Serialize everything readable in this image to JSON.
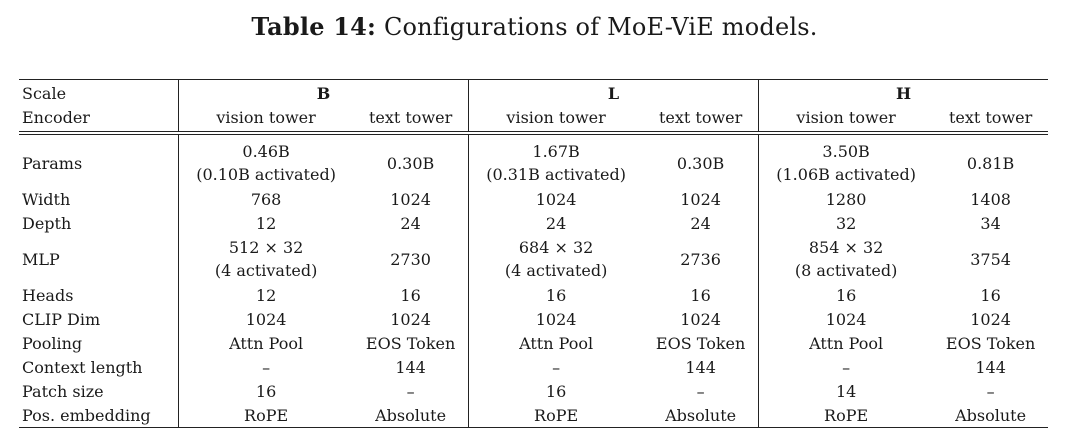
{
  "caption": {
    "label": "Table 14:",
    "text": "Configurations of MoE-ViE models."
  },
  "header": {
    "scale_label": "Scale",
    "encoder_label": "Encoder",
    "scales": [
      "B",
      "L",
      "H"
    ],
    "towers": [
      "vision tower",
      "text tower"
    ]
  },
  "rows": [
    {
      "label": "Params",
      "cells": [
        [
          "0.46B",
          "(0.10B activated)"
        ],
        [
          "0.30B"
        ],
        [
          "1.67B",
          "(0.31B activated)"
        ],
        [
          "0.30B"
        ],
        [
          "3.50B",
          "(1.06B activated)"
        ],
        [
          "0.81B"
        ]
      ]
    },
    {
      "label": "Width",
      "cells": [
        [
          "768"
        ],
        [
          "1024"
        ],
        [
          "1024"
        ],
        [
          "1024"
        ],
        [
          "1280"
        ],
        [
          "1408"
        ]
      ]
    },
    {
      "label": "Depth",
      "cells": [
        [
          "12"
        ],
        [
          "24"
        ],
        [
          "24"
        ],
        [
          "24"
        ],
        [
          "32"
        ],
        [
          "34"
        ]
      ]
    },
    {
      "label": "MLP",
      "cells": [
        [
          "512 × 32",
          "(4 activated)"
        ],
        [
          "2730"
        ],
        [
          "684 × 32",
          "(4 activated)"
        ],
        [
          "2736"
        ],
        [
          "854 × 32",
          "(8 activated)"
        ],
        [
          "3754"
        ]
      ]
    },
    {
      "label": "Heads",
      "cells": [
        [
          "12"
        ],
        [
          "16"
        ],
        [
          "16"
        ],
        [
          "16"
        ],
        [
          "16"
        ],
        [
          "16"
        ]
      ]
    },
    {
      "label": "CLIP Dim",
      "cells": [
        [
          "1024"
        ],
        [
          "1024"
        ],
        [
          "1024"
        ],
        [
          "1024"
        ],
        [
          "1024"
        ],
        [
          "1024"
        ]
      ]
    },
    {
      "label": "Pooling",
      "cells": [
        [
          "Attn Pool"
        ],
        [
          "EOS Token"
        ],
        [
          "Attn Pool"
        ],
        [
          "EOS Token"
        ],
        [
          "Attn Pool"
        ],
        [
          "EOS Token"
        ]
      ]
    },
    {
      "label": "Context length",
      "cells": [
        [
          "–"
        ],
        [
          "144"
        ],
        [
          "–"
        ],
        [
          "144"
        ],
        [
          "–"
        ],
        [
          "144"
        ]
      ]
    },
    {
      "label": "Patch size",
      "cells": [
        [
          "16"
        ],
        [
          "–"
        ],
        [
          "16"
        ],
        [
          "–"
        ],
        [
          "14"
        ],
        [
          "–"
        ]
      ]
    },
    {
      "label": "Pos. embedding",
      "cells": [
        [
          "RoPE"
        ],
        [
          "Absolute"
        ],
        [
          "RoPE"
        ],
        [
          "Absolute"
        ],
        [
          "RoPE"
        ],
        [
          "Absolute"
        ]
      ]
    }
  ]
}
